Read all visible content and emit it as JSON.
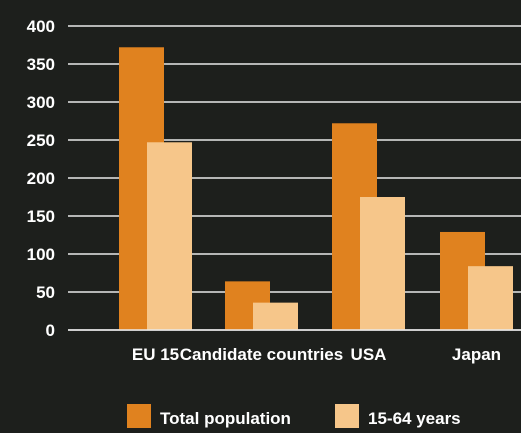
{
  "chart_data": {
    "type": "bar",
    "title": "",
    "xlabel": "",
    "ylabel": "",
    "categories": [
      "EU 15",
      "Candidate countries",
      "USA",
      "Japan"
    ],
    "series": [
      {
        "name": "Total population",
        "values": [
          372,
          64,
          272,
          129
        ],
        "color": "#e0821f"
      },
      {
        "name": "15-64 years",
        "values": [
          247,
          36,
          175,
          84
        ],
        "color": "#f6c68a"
      }
    ],
    "ylim": [
      0,
      400
    ],
    "yticks": [
      "0",
      "50",
      "100",
      "150",
      "200",
      "250",
      "300",
      "350",
      "400"
    ],
    "grid": true,
    "legend_position": "bottom",
    "text_color": "#ffffff",
    "grid_color": "#e8e8e8"
  }
}
